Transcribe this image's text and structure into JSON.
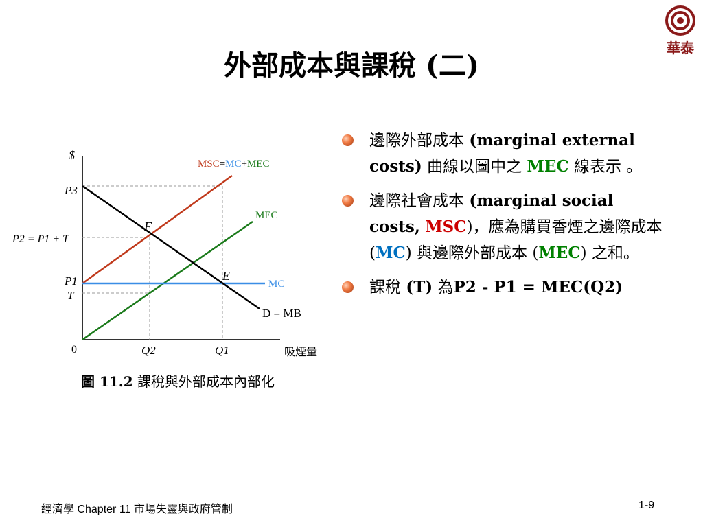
{
  "slide": {
    "title": "外部成本與課稅 (二)"
  },
  "logo": {
    "text": "華泰"
  },
  "diagram": {
    "y_axis_label": "$",
    "x_axis_label": "吸煙量",
    "origin": "0",
    "p3": "P3",
    "p2_label": "P2 = P1 + T",
    "p1": "P1",
    "t": "T",
    "q2": "Q2",
    "q1": "Q1",
    "point_f": "F",
    "point_e": "E",
    "msc_label": {
      "msc": "MSC",
      "eq": "=",
      "mc": "MC",
      "plus": "+",
      "mec": "MEC"
    },
    "mec_label": "MEC",
    "mc_label": "MC",
    "demand_label": "D = MB",
    "colors": {
      "msc": "#c0391b",
      "mec": "#1a7a1a",
      "mc": "#3a8ee6",
      "demand": "#000000"
    }
  },
  "caption": {
    "number": "圖 11.2",
    "text": "課稅與外部成本內部化"
  },
  "bullets": {
    "b1": {
      "zh1": "邊際外部成本",
      "en": "(marginal external costs)",
      "zh2": "曲線以圖中之",
      "mec": "MEC",
      "zh3": "線表示 。"
    },
    "b2": {
      "zh1": "邊際社會成本",
      "en1": "(marginal social costs,",
      "msc": "MSC",
      "en2": ")，應為購買香煙之邊際成本 (",
      "mc": "MC",
      "en3": ") 與邊際外部成本 (",
      "mec": "MEC",
      "en4": ")  之和。"
    },
    "b3": {
      "zh1": "課稅",
      "t": "(T)",
      "zh2": "為",
      "formula": "P2 - P1 = MEC(Q2)"
    }
  },
  "footer": {
    "left": "經濟學   Chapter 11 市場失靈與政府管制",
    "page": "1-9"
  }
}
